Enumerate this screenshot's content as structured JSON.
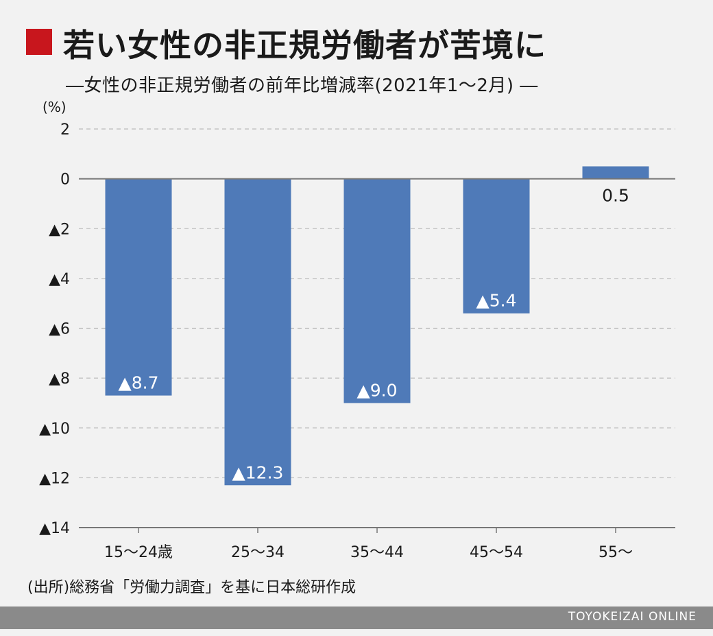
{
  "title": "若い女性の非正規労働者が苦境に",
  "subtitle": "―女性の非正規労働者の前年比増減率(2021年1～2月) ―",
  "unit_label": "(%)",
  "source": "(出所)総務省「労働力調査」を基に日本総研作成",
  "footer": "TOYOKEIZAI ONLINE",
  "colors": {
    "bar": "#4f7ab8",
    "accent": "#c8161d",
    "grid": "#bdbdbd",
    "axis": "#777777"
  },
  "chart_data": {
    "type": "bar",
    "title": "若い女性の非正規労働者が苦境に",
    "subtitle": "―女性の非正規労働者の前年比増減率(2021年1～2月) ―",
    "categories": [
      "15～24歳",
      "25～34",
      "35～44",
      "45～54",
      "55～"
    ],
    "values": [
      -8.7,
      -12.3,
      -9.0,
      -5.4,
      0.5
    ],
    "data_labels": [
      "▲8.7",
      "▲12.3",
      "▲9.0",
      "▲5.4",
      "0.5"
    ],
    "ylim": [
      -14,
      2
    ],
    "yticks": [
      2,
      0,
      -2,
      -4,
      -6,
      -8,
      -10,
      -12,
      -14
    ],
    "ytick_labels": [
      "2",
      "0",
      "▲2",
      "▲4",
      "▲6",
      "▲8",
      "▲10",
      "▲12",
      "▲14"
    ],
    "ylabel": "(%)",
    "grid": true
  }
}
